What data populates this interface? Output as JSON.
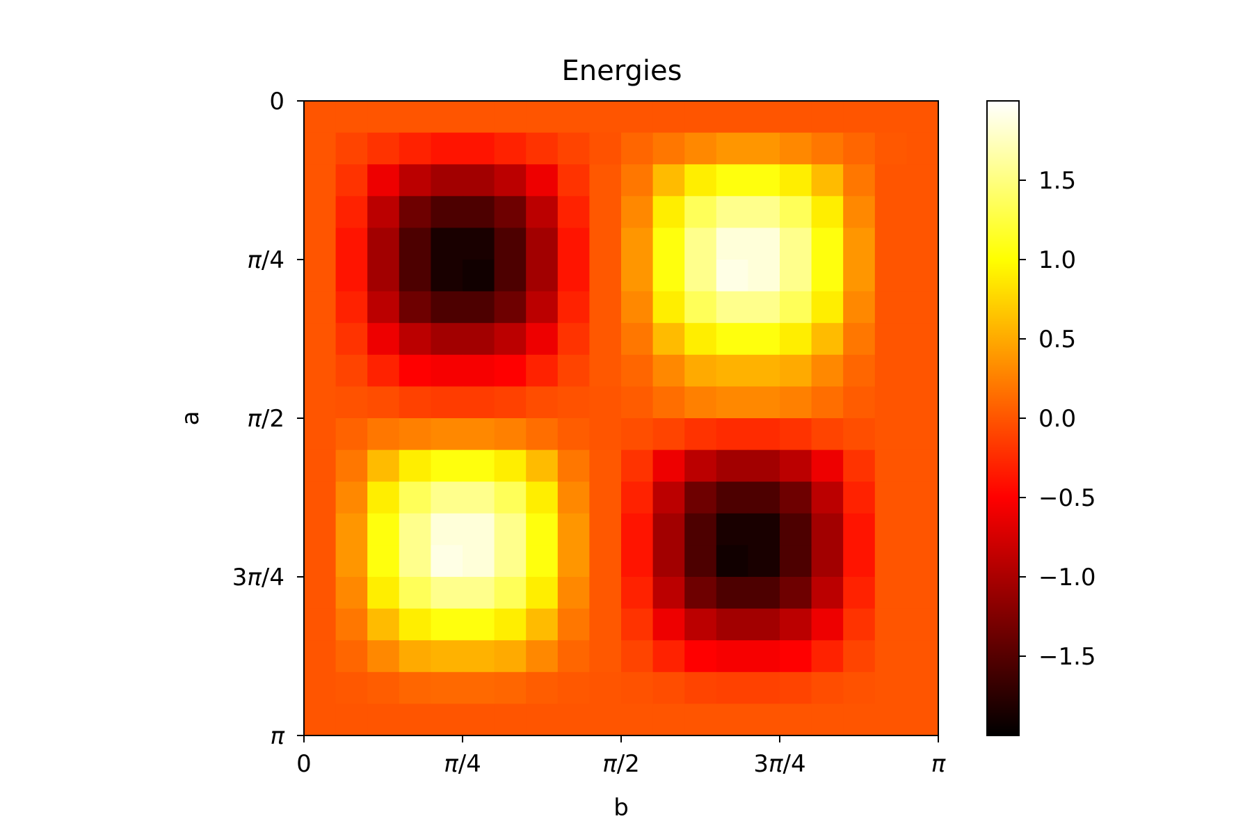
{
  "chart_data": {
    "type": "heatmap",
    "title": "Energies",
    "xlabel": "b",
    "ylabel": "a",
    "x_range": [
      0,
      3.14159
    ],
    "y_range": [
      0,
      3.14159
    ],
    "x_ticks": [
      {
        "pre": "",
        "italic": "",
        "post": "0",
        "value": 0
      },
      {
        "pre": "",
        "italic": "π",
        "post": "/4",
        "value": 0.7854
      },
      {
        "pre": "",
        "italic": "π",
        "post": "/2",
        "value": 1.5708
      },
      {
        "pre": "3",
        "italic": "π",
        "post": "/4",
        "value": 2.3562
      },
      {
        "pre": "",
        "italic": "π",
        "post": "",
        "value": 3.1416
      }
    ],
    "y_ticks": [
      {
        "pre": "",
        "italic": "",
        "post": "0",
        "value": 0
      },
      {
        "pre": "",
        "italic": "π",
        "post": "/4",
        "value": 0.7854
      },
      {
        "pre": "",
        "italic": "π",
        "post": "/2",
        "value": 1.5708
      },
      {
        "pre": "3",
        "italic": "π",
        "post": "/4",
        "value": 2.3562
      },
      {
        "pre": "",
        "italic": "π",
        "post": "",
        "value": 3.1416
      }
    ],
    "colormap": "hot",
    "colorbar": {
      "range": [
        -2,
        2
      ],
      "ticks": [
        {
          "value": 1.5,
          "label": "1.5"
        },
        {
          "value": 1.0,
          "label": "1.0"
        },
        {
          "value": 0.5,
          "label": "0.5"
        },
        {
          "value": 0.0,
          "label": "0.0"
        },
        {
          "value": -0.5,
          "label": "−0.5"
        },
        {
          "value": -1.0,
          "label": "−1.0"
        },
        {
          "value": -1.5,
          "label": "−1.5"
        }
      ]
    },
    "grid": false,
    "rows": 20,
    "cols": 20,
    "values": [
      [
        0,
        0,
        0,
        0,
        0,
        0,
        0,
        0,
        0,
        0,
        0,
        0,
        0,
        0,
        0,
        0,
        0,
        0,
        0,
        0
      ],
      [
        0,
        -0.1,
        -0.2,
        -0.3,
        -0.38,
        -0.38,
        -0.3,
        -0.2,
        -0.1,
        -0.02,
        0.1,
        0.2,
        0.3,
        0.38,
        0.38,
        0.3,
        0.2,
        0.1,
        0.02,
        0
      ],
      [
        0,
        -0.2,
        -0.6,
        -0.9,
        -1.05,
        -1.05,
        -0.9,
        -0.6,
        -0.2,
        0.02,
        0.2,
        0.6,
        0.9,
        1.05,
        1.05,
        0.9,
        0.6,
        0.2,
        0,
        0
      ],
      [
        0,
        -0.3,
        -0.9,
        -1.35,
        -1.55,
        -1.55,
        -1.35,
        -0.9,
        -0.3,
        0.02,
        0.3,
        0.9,
        1.35,
        1.55,
        1.55,
        1.35,
        0.9,
        0.3,
        0,
        0
      ],
      [
        0,
        -0.38,
        -1.05,
        -1.55,
        -1.85,
        -1.85,
        -1.55,
        -1.05,
        -0.38,
        0.02,
        0.38,
        1.05,
        1.55,
        1.85,
        1.85,
        1.55,
        1.05,
        0.38,
        0,
        0
      ],
      [
        0,
        -0.38,
        -1.05,
        -1.55,
        -1.85,
        -1.9,
        -1.55,
        -1.05,
        -0.38,
        0.02,
        0.38,
        1.05,
        1.55,
        1.9,
        1.85,
        1.55,
        1.05,
        0.38,
        0,
        0
      ],
      [
        0,
        -0.3,
        -0.9,
        -1.35,
        -1.55,
        -1.55,
        -1.35,
        -0.9,
        -0.3,
        0.02,
        0.3,
        0.9,
        1.35,
        1.55,
        1.55,
        1.35,
        0.9,
        0.3,
        0,
        0
      ],
      [
        0,
        -0.2,
        -0.6,
        -0.9,
        -1.05,
        -1.05,
        -0.9,
        -0.6,
        -0.2,
        0.02,
        0.2,
        0.6,
        0.9,
        1.05,
        1.05,
        0.9,
        0.6,
        0.2,
        0,
        0
      ],
      [
        0,
        -0.1,
        -0.3,
        -0.5,
        -0.55,
        -0.55,
        -0.5,
        -0.3,
        -0.1,
        0.02,
        0.1,
        0.3,
        0.5,
        0.55,
        0.55,
        0.5,
        0.3,
        0.1,
        0,
        0
      ],
      [
        0,
        -0.02,
        -0.05,
        -0.12,
        -0.15,
        -0.15,
        -0.12,
        -0.05,
        -0.02,
        0,
        0.04,
        0.15,
        0.25,
        0.3,
        0.3,
        0.25,
        0.15,
        0.04,
        0,
        0
      ],
      [
        0,
        0.08,
        0.2,
        0.25,
        0.3,
        0.3,
        0.25,
        0.15,
        0.05,
        0,
        -0.04,
        -0.1,
        -0.2,
        -0.25,
        -0.25,
        -0.2,
        -0.1,
        -0.04,
        0,
        0
      ],
      [
        0,
        0.2,
        0.6,
        0.9,
        1.05,
        1.05,
        0.9,
        0.6,
        0.2,
        0.02,
        -0.2,
        -0.6,
        -0.9,
        -1.05,
        -1.05,
        -0.9,
        -0.6,
        -0.2,
        0,
        0
      ],
      [
        0,
        0.3,
        0.9,
        1.35,
        1.55,
        1.55,
        1.35,
        0.9,
        0.3,
        0.02,
        -0.3,
        -0.9,
        -1.35,
        -1.55,
        -1.55,
        -1.35,
        -0.9,
        -0.3,
        0,
        0
      ],
      [
        0,
        0.38,
        1.05,
        1.55,
        1.85,
        1.85,
        1.55,
        1.05,
        0.38,
        0.02,
        -0.38,
        -1.05,
        -1.55,
        -1.85,
        -1.85,
        -1.55,
        -1.05,
        -0.38,
        0,
        0
      ],
      [
        0,
        0.38,
        1.05,
        1.55,
        1.9,
        1.85,
        1.55,
        1.05,
        0.38,
        0.02,
        -0.38,
        -1.05,
        -1.55,
        -1.9,
        -1.85,
        -1.55,
        -1.05,
        -0.38,
        0,
        0
      ],
      [
        0,
        0.3,
        0.9,
        1.35,
        1.55,
        1.55,
        1.35,
        0.9,
        0.3,
        0.02,
        -0.3,
        -0.9,
        -1.35,
        -1.55,
        -1.55,
        -1.35,
        -0.9,
        -0.3,
        0,
        0
      ],
      [
        0,
        0.2,
        0.6,
        0.9,
        1.05,
        1.05,
        0.9,
        0.6,
        0.2,
        0.02,
        -0.2,
        -0.6,
        -0.9,
        -1.05,
        -1.05,
        -0.9,
        -0.6,
        -0.2,
        0,
        0
      ],
      [
        0,
        0.1,
        0.3,
        0.5,
        0.55,
        0.55,
        0.5,
        0.3,
        0.1,
        0.02,
        -0.1,
        -0.3,
        -0.5,
        -0.55,
        -0.55,
        -0.5,
        -0.3,
        -0.1,
        0,
        0
      ],
      [
        0,
        0.02,
        0.05,
        0.1,
        0.12,
        0.12,
        0.1,
        0.05,
        0.02,
        0,
        -0.02,
        -0.05,
        -0.1,
        -0.12,
        -0.12,
        -0.1,
        -0.05,
        -0.02,
        0,
        0
      ],
      [
        0,
        0,
        0,
        0,
        0,
        0,
        0,
        0,
        0,
        0,
        0,
        0,
        0,
        0,
        0,
        0,
        0,
        0,
        0,
        0
      ]
    ]
  }
}
